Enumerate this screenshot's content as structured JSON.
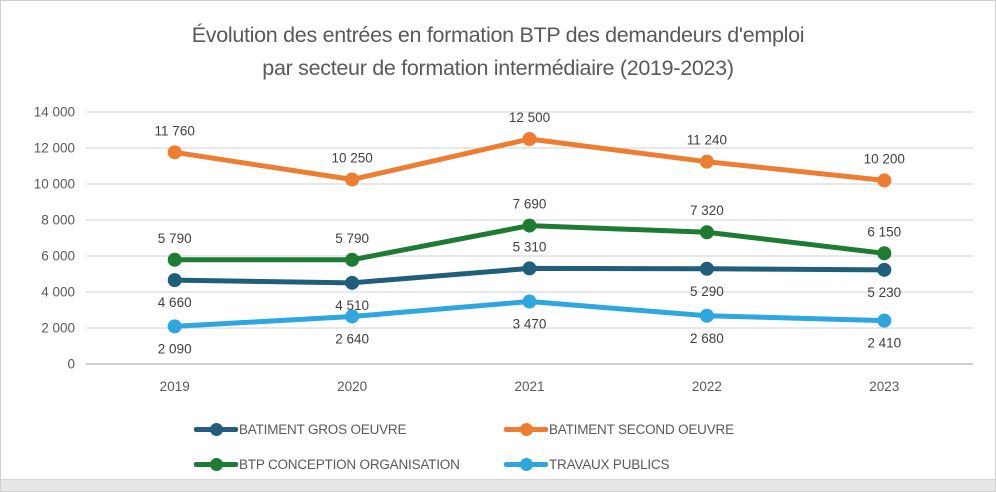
{
  "title": {
    "line1": "Évolution des entrées en formation BTP des demandeurs d'emploi",
    "line2": "par secteur de formation intermédiaire (2019-2023)"
  },
  "chart_data": {
    "type": "line",
    "categories": [
      "2019",
      "2020",
      "2021",
      "2022",
      "2023"
    ],
    "series": [
      {
        "name": "BATIMENT GROS OEUVRE",
        "color": "#1F5F7B",
        "values": [
          4660,
          4510,
          5310,
          5290,
          5230
        ],
        "label_side": [
          "below",
          "below",
          "above",
          "below",
          "below"
        ]
      },
      {
        "name": "BATIMENT SECOND OEUVRE",
        "color": "#ED7D31",
        "values": [
          11760,
          10250,
          12500,
          11240,
          10200
        ],
        "label_side": [
          "above",
          "above",
          "above",
          "above",
          "above"
        ]
      },
      {
        "name": "BTP CONCEPTION ORGANISATION",
        "color": "#1E7B34",
        "values": [
          5790,
          5790,
          7690,
          7320,
          6150
        ],
        "label_side": [
          "above",
          "above",
          "above",
          "above",
          "above"
        ]
      },
      {
        "name": "TRAVAUX PUBLICS",
        "color": "#2EA6DE",
        "values": [
          2090,
          2640,
          3470,
          2680,
          2410
        ],
        "label_side": [
          "below",
          "below",
          "below",
          "below",
          "below"
        ]
      }
    ],
    "y_ticks": [
      0,
      2000,
      4000,
      6000,
      8000,
      10000,
      12000,
      14000
    ],
    "ylim": [
      0,
      14000
    ],
    "grid": true,
    "legend_position": "bottom",
    "xlabel": "",
    "ylabel": "",
    "data_labels_shown": true
  },
  "colors": {
    "gridline": "#D9D9D9",
    "zero_axis": "#BFBFBF",
    "tick_text": "#595959",
    "data_label_text": "#404040",
    "title_text": "#595959"
  }
}
